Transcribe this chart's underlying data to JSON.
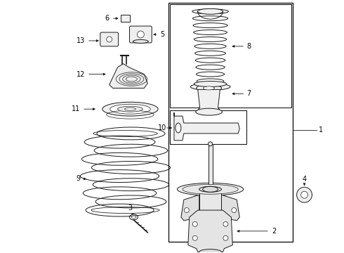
{
  "bg_color": "#ffffff",
  "line_color": "#1a1a1a",
  "label_color": "#000000",
  "label_fs": 7,
  "lw": 0.7
}
